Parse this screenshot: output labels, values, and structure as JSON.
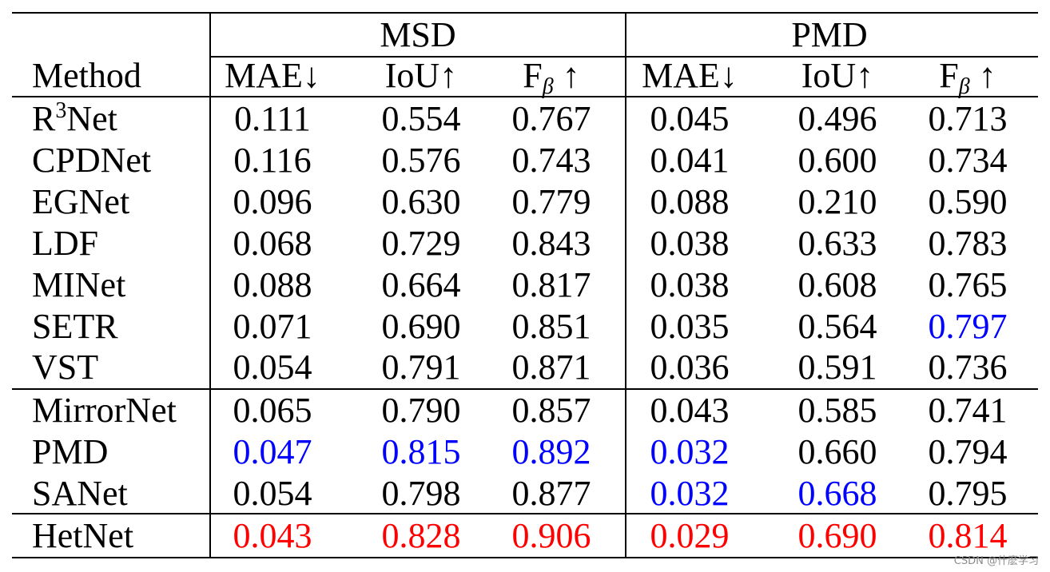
{
  "table": {
    "groups": [
      "MSD",
      "PMD"
    ],
    "method_header": "Method",
    "metrics": [
      {
        "base": "MAE",
        "sub": "",
        "arrow": "↓"
      },
      {
        "base": "IoU",
        "sub": "",
        "arrow": "↑"
      },
      {
        "base": "F",
        "sub": "β",
        "arrow": " ↑"
      }
    ],
    "rows": [
      {
        "method": "R",
        "method_sup": "3",
        "method_tail": "Net",
        "values": [
          "0.111",
          "0.554",
          "0.767",
          "0.045",
          "0.496",
          "0.713"
        ],
        "colors": [
          "",
          "",
          "",
          "",
          "",
          ""
        ]
      },
      {
        "method": "CPDNet",
        "values": [
          "0.116",
          "0.576",
          "0.743",
          "0.041",
          "0.600",
          "0.734"
        ],
        "colors": [
          "",
          "",
          "",
          "",
          "",
          ""
        ]
      },
      {
        "method": "EGNet",
        "values": [
          "0.096",
          "0.630",
          "0.779",
          "0.088",
          "0.210",
          "0.590"
        ],
        "colors": [
          "",
          "",
          "",
          "",
          "",
          ""
        ]
      },
      {
        "method": "LDF",
        "values": [
          "0.068",
          "0.729",
          "0.843",
          "0.038",
          "0.633",
          "0.783"
        ],
        "colors": [
          "",
          "",
          "",
          "",
          "",
          ""
        ]
      },
      {
        "method": "MINet",
        "values": [
          "0.088",
          "0.664",
          "0.817",
          "0.038",
          "0.608",
          "0.765"
        ],
        "colors": [
          "",
          "",
          "",
          "",
          "",
          ""
        ]
      },
      {
        "method": "SETR",
        "values": [
          "0.071",
          "0.690",
          "0.851",
          "0.035",
          "0.564",
          "0.797"
        ],
        "colors": [
          "",
          "",
          "",
          "",
          "",
          "blue"
        ]
      },
      {
        "method": "VST",
        "values": [
          "0.054",
          "0.791",
          "0.871",
          "0.036",
          "0.591",
          "0.736"
        ],
        "colors": [
          "",
          "",
          "",
          "",
          "",
          ""
        ]
      },
      {
        "method": "MirrorNet",
        "values": [
          "0.065",
          "0.790",
          "0.857",
          "0.043",
          "0.585",
          "0.741"
        ],
        "colors": [
          "",
          "",
          "",
          "",
          "",
          ""
        ]
      },
      {
        "method": "PMD",
        "values": [
          "0.047",
          "0.815",
          "0.892",
          "0.032",
          "0.660",
          "0.794"
        ],
        "colors": [
          "blue",
          "blue",
          "blue",
          "blue",
          "",
          ""
        ]
      },
      {
        "method": "SANet",
        "values": [
          "0.054",
          "0.798",
          "0.877",
          "0.032",
          "0.668",
          "0.795"
        ],
        "colors": [
          "",
          "",
          "",
          "blue",
          "blue",
          ""
        ]
      },
      {
        "method": "HetNet",
        "values": [
          "0.043",
          "0.828",
          "0.906",
          "0.029",
          "0.690",
          "0.814"
        ],
        "colors": [
          "red",
          "red",
          "red",
          "red",
          "red",
          "red"
        ]
      }
    ]
  },
  "colors": {
    "best": "#ff0000",
    "second": "#0000ff"
  },
  "watermark": "CSDN @什麽学习"
}
